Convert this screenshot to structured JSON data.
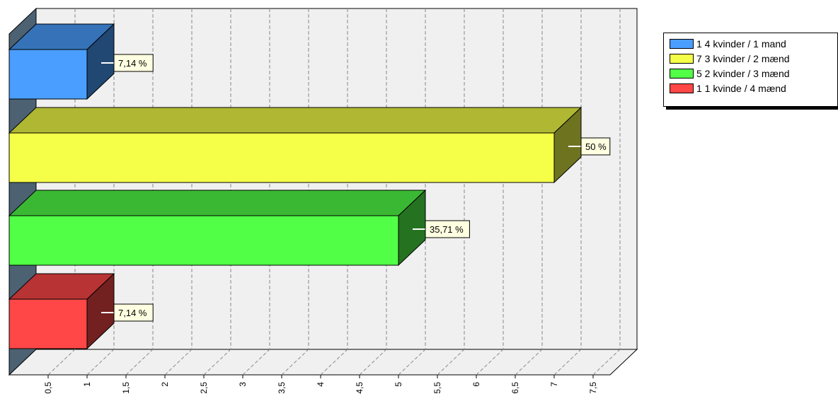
{
  "chart_data": {
    "type": "bar",
    "orientation": "horizontal",
    "categories": [
      "1 4 kvinder / 1 mand",
      "7 3 kvinder / 2 mænd",
      "5 2 kvinder / 3 mænd",
      "1 1 kvinde / 4 mænd"
    ],
    "values": [
      1,
      7,
      5,
      1
    ],
    "data_labels": [
      "7,14 %",
      "50 %",
      "35,71 %",
      "7,14 %"
    ],
    "colors": [
      "#4a9eff",
      "#f5ff47",
      "#52ff47",
      "#ff4747"
    ],
    "xlim": [
      0,
      7.5
    ],
    "x_ticks": [
      0.5,
      1,
      1.5,
      2,
      2.5,
      3,
      3.5,
      4,
      4.5,
      5,
      5.5,
      6,
      6.5,
      7,
      7.5
    ],
    "x_tick_labels": [
      "0,5",
      "1",
      "1,5",
      "2",
      "2,5",
      "3",
      "3,5",
      "4",
      "4,5",
      "5",
      "5,5",
      "6",
      "6,5",
      "7",
      "7,5"
    ],
    "grid": true,
    "legend_position": "top-right",
    "title": "",
    "xlabel": "",
    "ylabel": ""
  },
  "legend": {
    "items": [
      {
        "label": "1 4 kvinder / 1 mand",
        "color": "#4a9eff"
      },
      {
        "label": "7 3 kvinder / 2 mænd",
        "color": "#f5ff47"
      },
      {
        "label": "5 2 kvinder / 3 mænd",
        "color": "#52ff47"
      },
      {
        "label": "1 1 kvinde / 4 mænd",
        "color": "#ff4747"
      }
    ]
  }
}
